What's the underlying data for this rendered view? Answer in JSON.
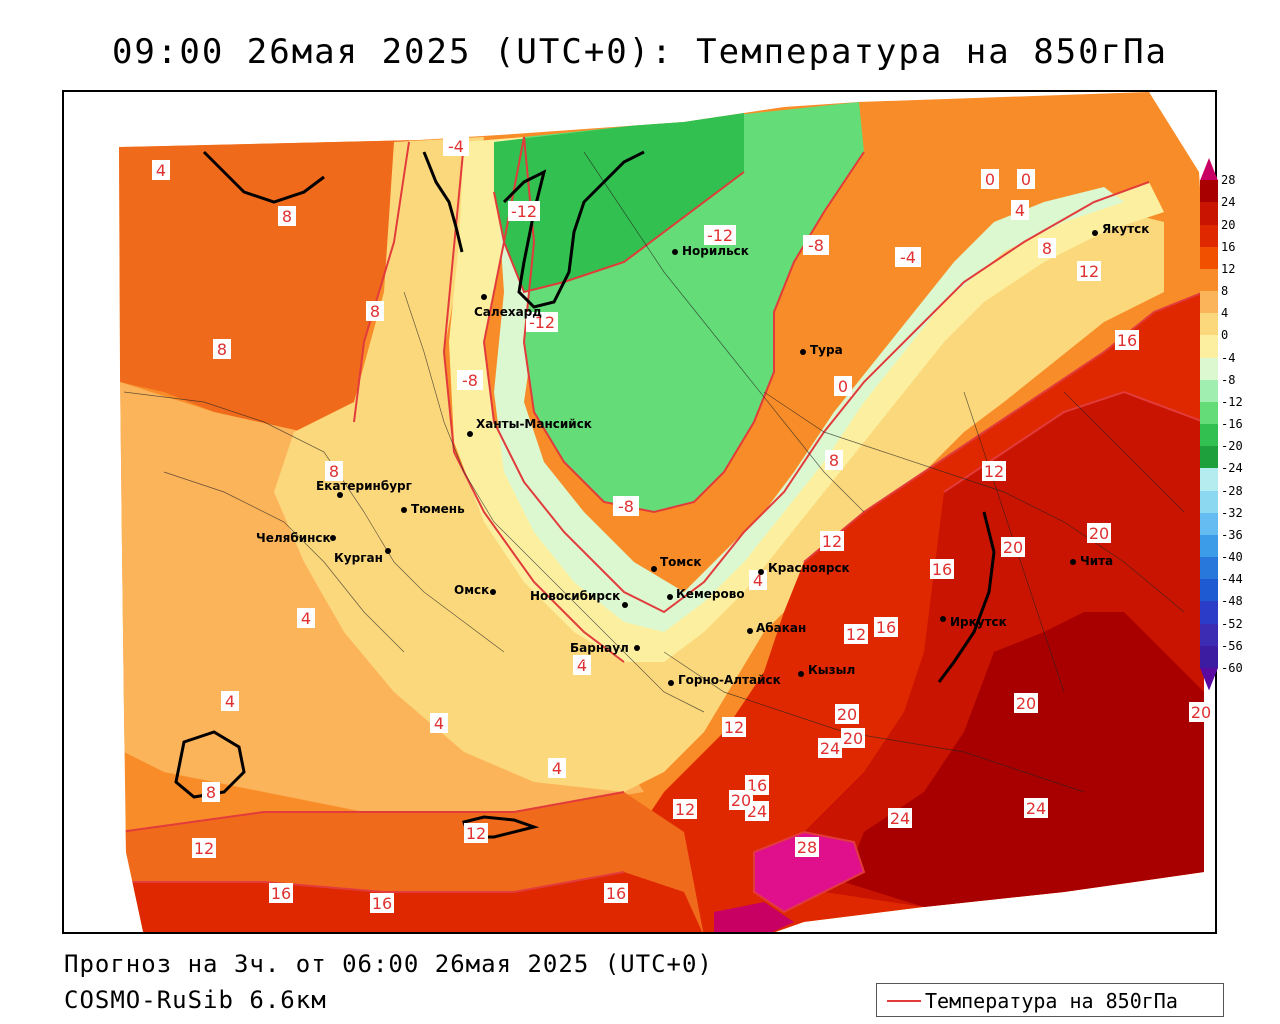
{
  "title": "09:00 26мая 2025 (UTC+0): Температура на 850гПа",
  "forecast_text": "Прогноз на 3ч. от 06:00 26мая 2025 (UTC+0)",
  "model_text": "COSMO-RuSib 6.6км",
  "legend": {
    "label": "Температура на 850гПа",
    "line_color": "#e23b3b"
  },
  "colorbar": {
    "ticks": [
      "28",
      "24",
      "20",
      "16",
      "12",
      "8",
      "4",
      "0",
      "-4",
      "-8",
      "-12",
      "-16",
      "-20",
      "-24",
      "-28",
      "-32",
      "-36",
      "-40",
      "-44",
      "-48",
      "-52",
      "-56",
      "-60"
    ],
    "colors": [
      "#c80064",
      "#a80000",
      "#c81400",
      "#e02800",
      "#f05000",
      "#f88c28",
      "#fcb45a",
      "#fcd87c",
      "#fcf0a0",
      "#dcf8d0",
      "#a0eeb0",
      "#64dc78",
      "#32c050",
      "#1ea03c",
      "#b4ecf0",
      "#8cd8f0",
      "#64bcf0",
      "#3c9ce8",
      "#2878dc",
      "#1e5ad2",
      "#2a3cc8",
      "#3c2cb4",
      "#3c1ca0",
      "#5a0aa0"
    ]
  },
  "cities": [
    {
      "name": "Якутск"
    },
    {
      "name": "Норильск"
    },
    {
      "name": "Салехард"
    },
    {
      "name": "Тура"
    },
    {
      "name": "Ханты-Мансийск"
    },
    {
      "name": "Екатеринбург"
    },
    {
      "name": "Тюмень"
    },
    {
      "name": "Челябинск"
    },
    {
      "name": "Курган"
    },
    {
      "name": "Омск"
    },
    {
      "name": "Новосибирск"
    },
    {
      "name": "Томск"
    },
    {
      "name": "Кемерово"
    },
    {
      "name": "Красноярск"
    },
    {
      "name": "Барнаул"
    },
    {
      "name": "Абакан"
    },
    {
      "name": "Горно-Алтайск"
    },
    {
      "name": "Кызыл"
    },
    {
      "name": "Иркутск"
    },
    {
      "name": "Чита"
    }
  ],
  "isotherm_labels": [
    "4",
    "8",
    "8",
    "8",
    "8",
    "4",
    "4",
    "4",
    "8",
    "12",
    "16",
    "16",
    "12",
    "16",
    "-4",
    "-12",
    "-12",
    "-12",
    "-8",
    "-8",
    "-4",
    "-8",
    "0",
    "0",
    "4",
    "8",
    "12",
    "16",
    "0",
    "8",
    "12",
    "4",
    "12",
    "16",
    "16",
    "12",
    "20",
    "20",
    "16",
    "4",
    "0",
    "4",
    "12",
    "16",
    "20",
    "24",
    "20",
    "24",
    "20",
    "24",
    "28",
    "12",
    "16",
    "20",
    "20",
    "20",
    "24",
    "-4"
  ]
}
